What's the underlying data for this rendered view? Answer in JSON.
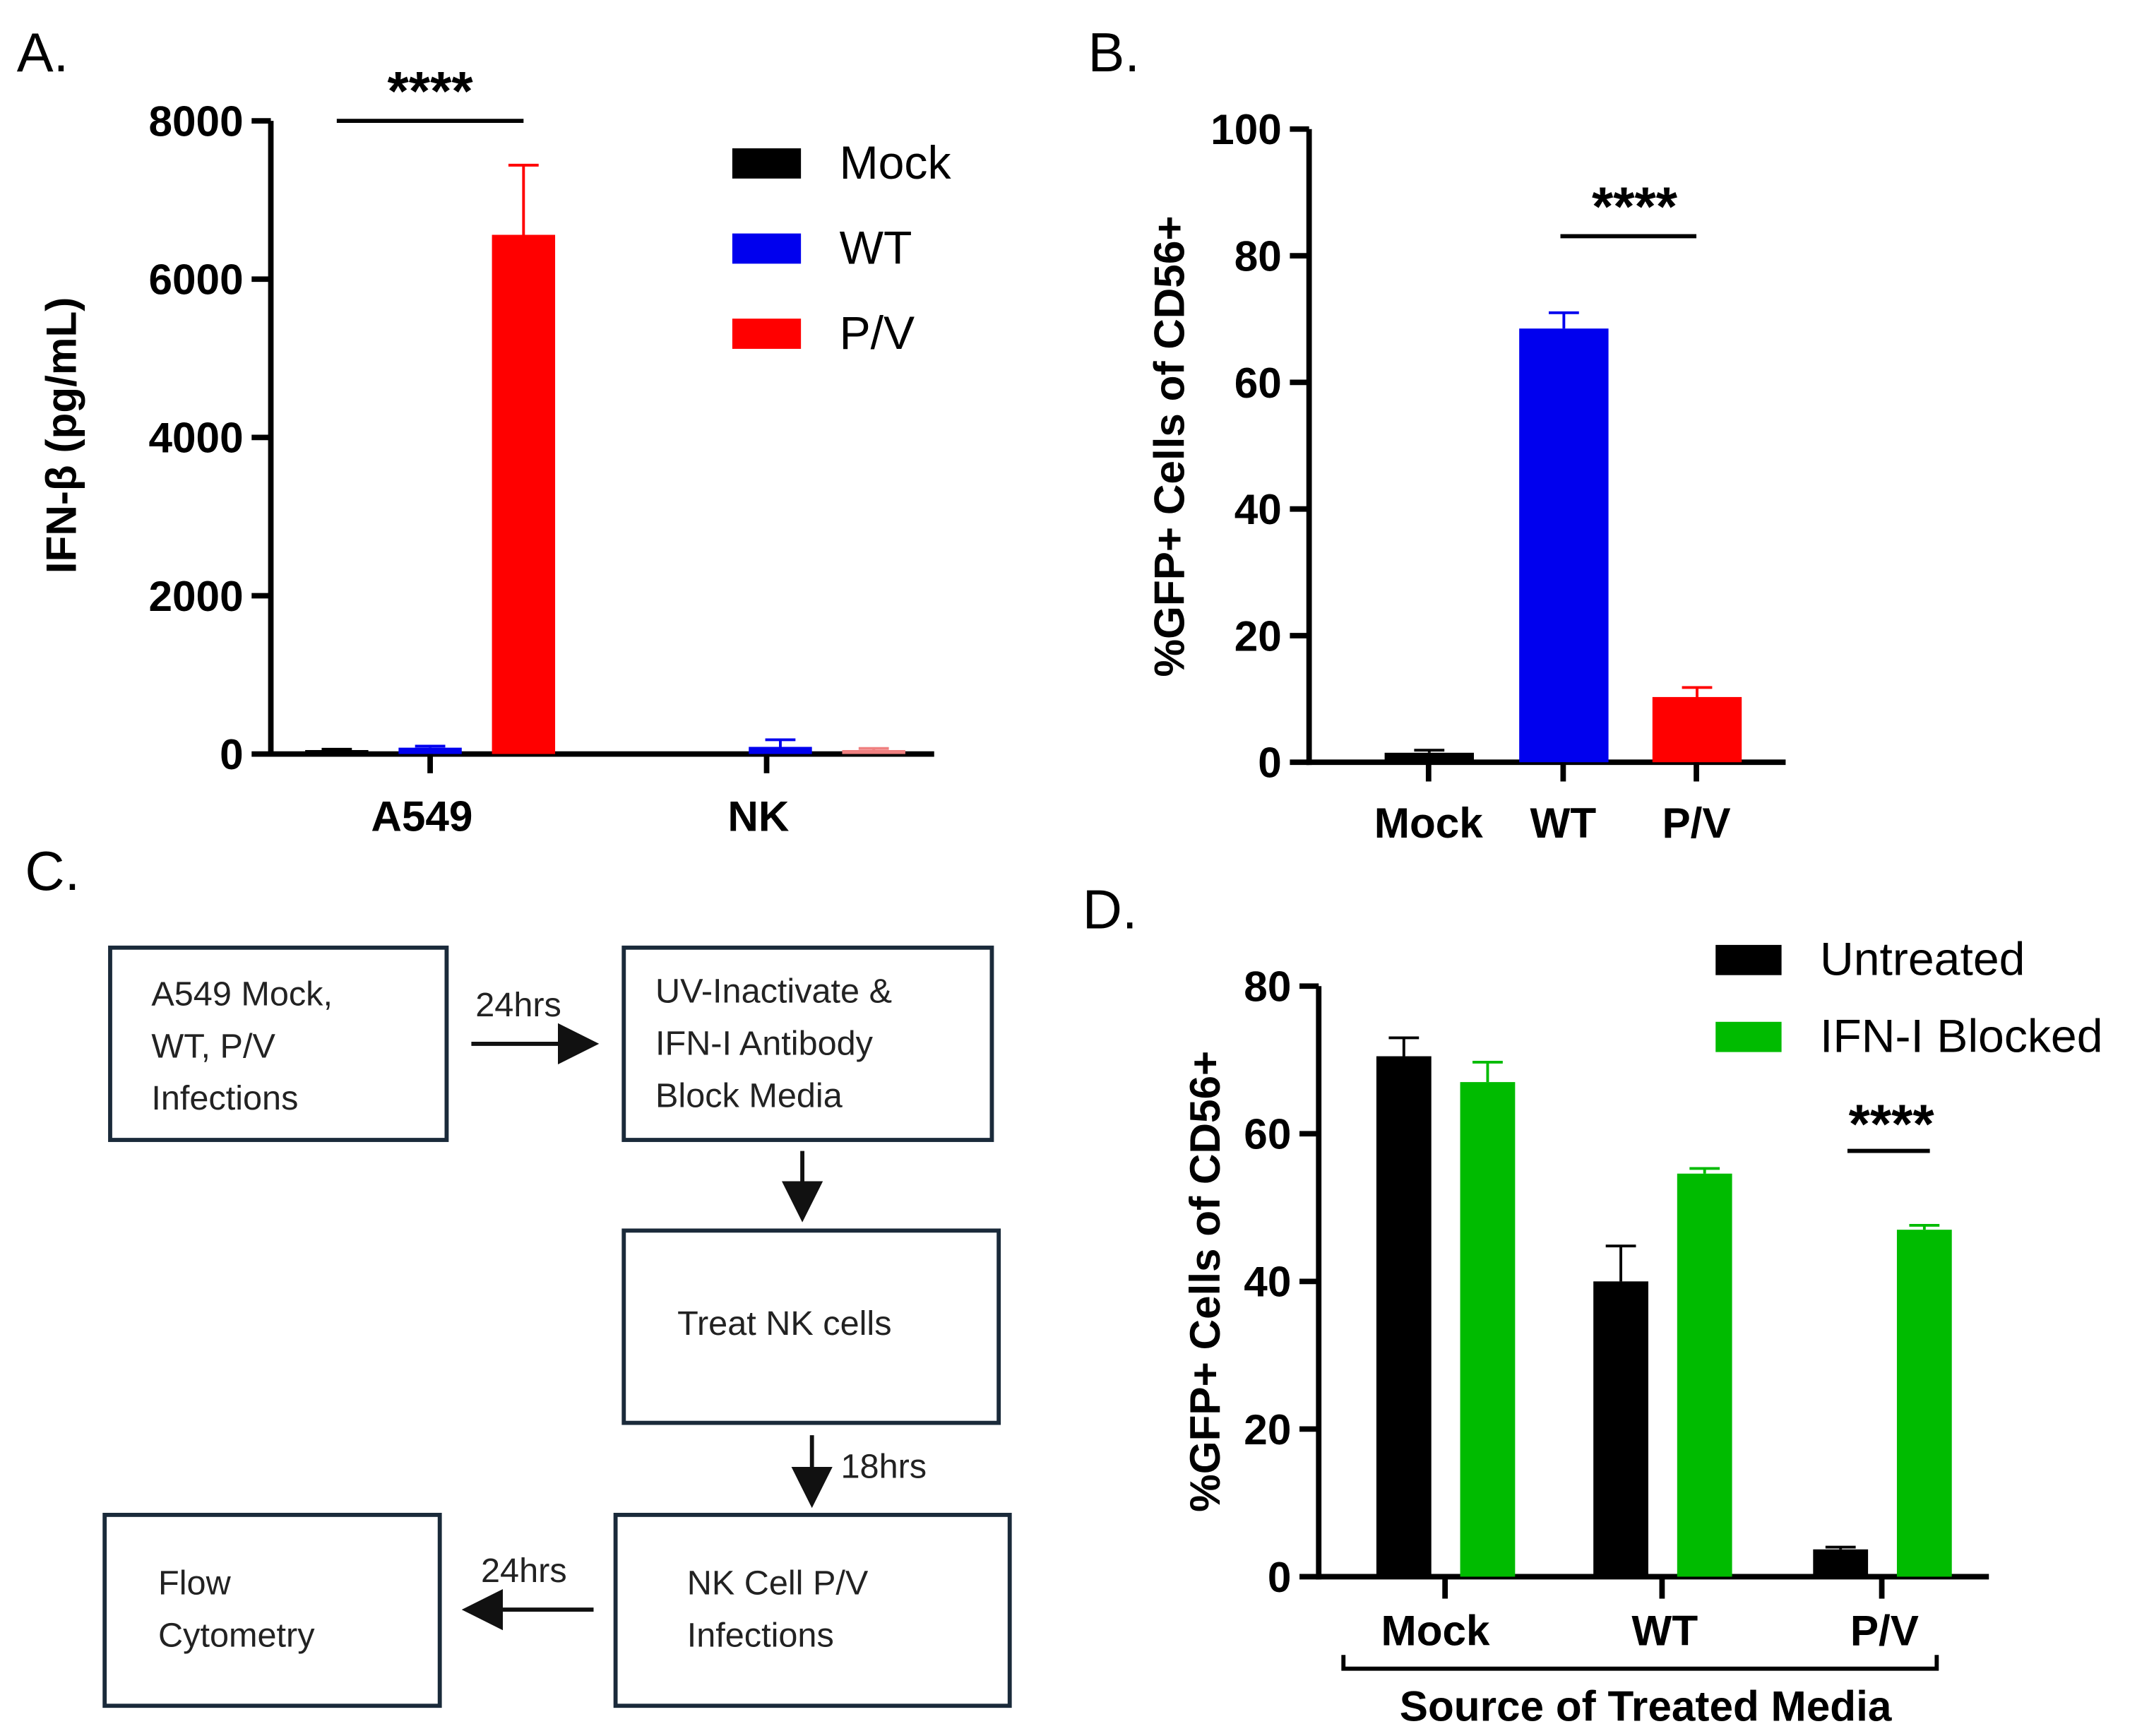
{
  "panel_labels": {
    "a": "A.",
    "b": "B.",
    "c": "C.",
    "d": "D."
  },
  "colors": {
    "mock": "#000000",
    "wt": "#0000ee",
    "pv": "#ff0000",
    "pv_light": "#f08080",
    "untreated": "#000000",
    "blocked": "#00bb00"
  },
  "chart_data": [
    {
      "type": "bar",
      "panel": "A",
      "ylabel": "IFN-β (pg/mL)",
      "ylim": [
        0,
        8000
      ],
      "yticks": [
        0,
        2000,
        4000,
        6000,
        8000
      ],
      "categories": [
        "A549",
        "NK"
      ],
      "series": [
        {
          "name": "Mock",
          "values": [
            50,
            0
          ],
          "errors": [
            60,
            0
          ]
        },
        {
          "name": "WT",
          "values": [
            80,
            90
          ],
          "errors": [
            100,
            180
          ]
        },
        {
          "name": "P/V",
          "values": [
            6560,
            50
          ],
          "errors": [
            7440,
            70
          ]
        }
      ],
      "legend": [
        "Mock",
        "WT",
        "P/V"
      ],
      "legend_position": "top-right",
      "significance": "****"
    },
    {
      "type": "bar",
      "panel": "B",
      "ylabel": "%GFP+ Cells of CD56+",
      "ylim": [
        0,
        100
      ],
      "yticks": [
        0,
        20,
        40,
        60,
        80,
        100
      ],
      "categories": [
        "Mock",
        "WT",
        "P/V"
      ],
      "values": [
        1.5,
        68.5,
        10.3
      ],
      "errors": [
        1.9,
        71,
        11.8
      ],
      "significance": "****"
    },
    {
      "type": "bar",
      "panel": "D",
      "ylabel": "%GFP+ Cells of CD56+",
      "xlabel": "Source of Treated Media",
      "ylim": [
        0,
        80
      ],
      "yticks": [
        0,
        20,
        40,
        60,
        80
      ],
      "categories": [
        "Mock",
        "WT",
        "P/V"
      ],
      "series": [
        {
          "name": "Untreated",
          "values": [
            70.5,
            40,
            3.7
          ],
          "errors": [
            73,
            44.8,
            4
          ]
        },
        {
          "name": "IFN-I Blocked",
          "values": [
            67,
            54.6,
            47
          ],
          "errors": [
            69.7,
            55.3,
            47.6
          ]
        }
      ],
      "legend": [
        "Untreated",
        "IFN-I Blocked"
      ],
      "legend_position": "top-right",
      "significance": "****"
    }
  ],
  "flow": {
    "box1": [
      "A549 Mock,",
      "WT, P/V",
      "Infections"
    ],
    "box2": [
      "UV-Inactivate &",
      "IFN-I Antibody",
      "Block Media"
    ],
    "box3": [
      "Treat NK cells"
    ],
    "box4": [
      "NK Cell P/V",
      "Infections"
    ],
    "box5": [
      "Flow",
      "Cytometry"
    ],
    "arrow1": "24hrs",
    "arrow3": "18hrs",
    "arrow4": "24hrs"
  }
}
